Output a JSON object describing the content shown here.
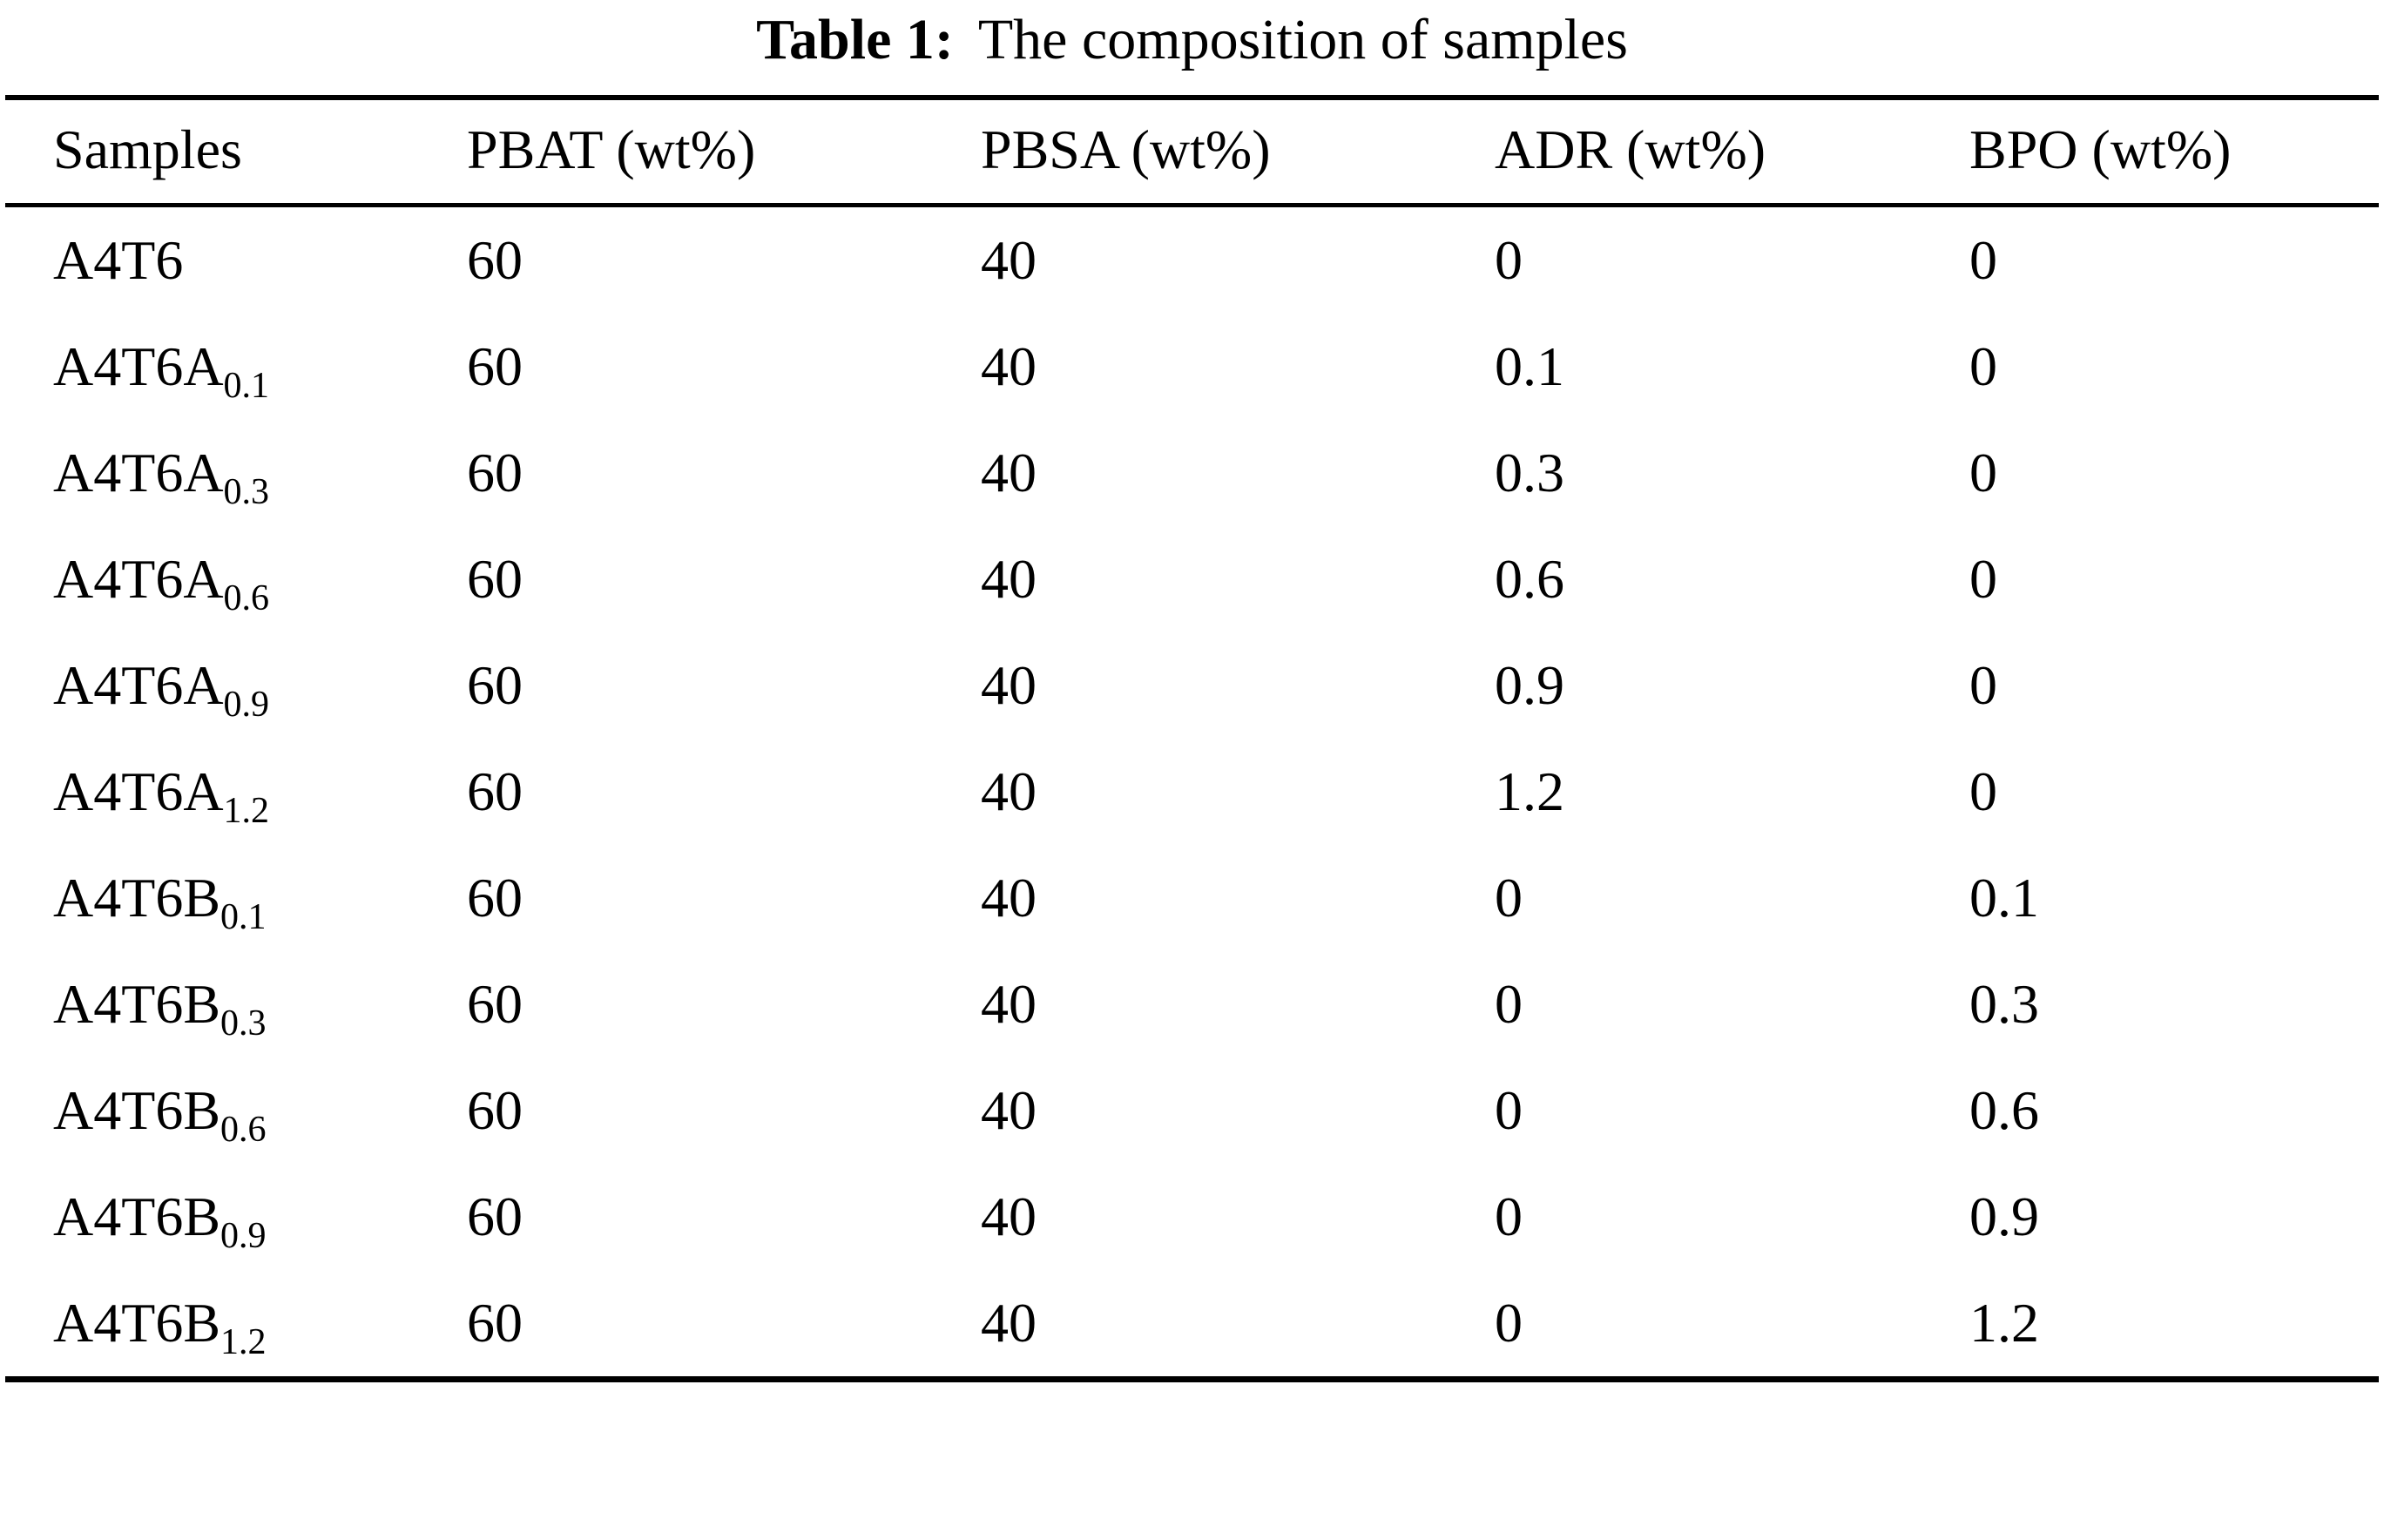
{
  "caption": {
    "label": "Table 1:",
    "text": "The composition of samples"
  },
  "table": {
    "columns": [
      "Samples",
      "PBAT (wt%)",
      "PBSA (wt%)",
      "ADR (wt%)",
      "BPO (wt%)"
    ],
    "rows": [
      {
        "sample": {
          "base": "A4T6",
          "sub": ""
        },
        "values": [
          "60",
          "40",
          "0",
          "0"
        ]
      },
      {
        "sample": {
          "base": "A4T6A",
          "sub": "0.1"
        },
        "values": [
          "60",
          "40",
          "0.1",
          "0"
        ]
      },
      {
        "sample": {
          "base": "A4T6A",
          "sub": "0.3"
        },
        "values": [
          "60",
          "40",
          "0.3",
          "0"
        ]
      },
      {
        "sample": {
          "base": "A4T6A",
          "sub": "0.6"
        },
        "values": [
          "60",
          "40",
          "0.6",
          "0"
        ]
      },
      {
        "sample": {
          "base": "A4T6A",
          "sub": "0.9"
        },
        "values": [
          "60",
          "40",
          "0.9",
          "0"
        ]
      },
      {
        "sample": {
          "base": "A4T6A",
          "sub": "1.2"
        },
        "values": [
          "60",
          "40",
          "1.2",
          "0"
        ]
      },
      {
        "sample": {
          "base": "A4T6B",
          "sub": "0.1"
        },
        "values": [
          "60",
          "40",
          "0",
          "0.1"
        ]
      },
      {
        "sample": {
          "base": "A4T6B",
          "sub": "0.3"
        },
        "values": [
          "60",
          "40",
          "0",
          "0.3"
        ]
      },
      {
        "sample": {
          "base": "A4T6B",
          "sub": "0.6"
        },
        "values": [
          "60",
          "40",
          "0",
          "0.6"
        ]
      },
      {
        "sample": {
          "base": "A4T6B",
          "sub": "0.9"
        },
        "values": [
          "60",
          "40",
          "0",
          "0.9"
        ]
      },
      {
        "sample": {
          "base": "A4T6B",
          "sub": "1.2"
        },
        "values": [
          "60",
          "40",
          "0",
          "1.2"
        ]
      }
    ]
  }
}
